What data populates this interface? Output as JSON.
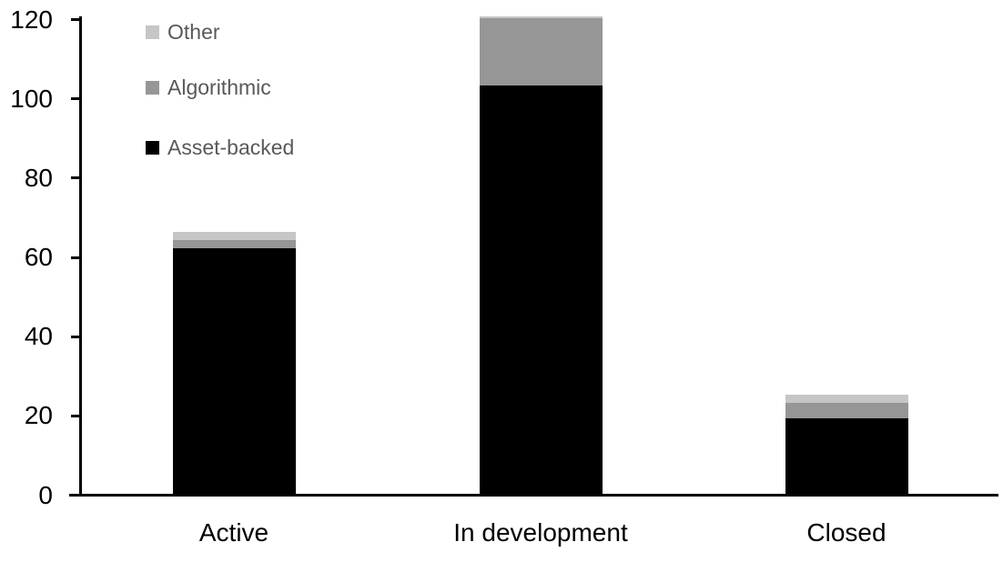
{
  "chart_data": {
    "type": "bar",
    "stacked": true,
    "title": "",
    "xlabel": "",
    "ylabel": "",
    "categories": [
      "Active",
      "In development",
      "Closed"
    ],
    "series": [
      {
        "name": "Asset-backed",
        "color": "#000000",
        "values": [
          62,
          103,
          19
        ]
      },
      {
        "name": "Algorithmic",
        "color": "#969696",
        "values": [
          2,
          17,
          4
        ]
      },
      {
        "name": "Other",
        "color": "#c6c6c6",
        "values": [
          2,
          0.5,
          2
        ]
      }
    ],
    "totals": [
      66,
      120.5,
      25
    ],
    "ylim": [
      0,
      120
    ],
    "yticks": [
      0,
      20,
      40,
      60,
      80,
      100,
      120
    ],
    "grid": false,
    "legend": {
      "position": "top-left",
      "order": [
        "Other",
        "Algorithmic",
        "Asset-backed"
      ],
      "text_color": "#595959"
    },
    "axis_color": "#000000",
    "tick_label_color": "#000000"
  }
}
